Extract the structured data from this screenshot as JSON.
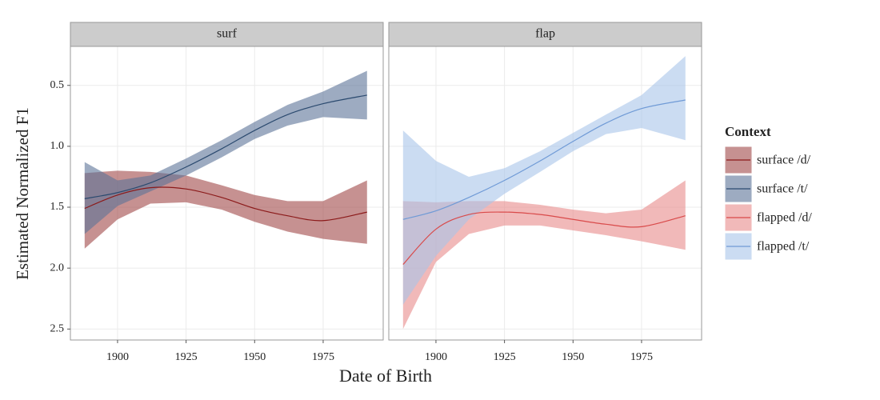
{
  "chart_data": {
    "type": "line",
    "xlabel": "Date of Birth",
    "ylabel": "Estimated Normalized F1",
    "legend_title": "Context",
    "legend_position": "right",
    "x": [
      1888,
      1900,
      1912,
      1925,
      1938,
      1950,
      1962,
      1975,
      1991
    ],
    "xlim": [
      1882.8,
      1996.9
    ],
    "xticks": [
      1900,
      1925,
      1950,
      1975
    ],
    "ylim": [
      0.18,
      2.59
    ],
    "yreverse": true,
    "yticks": [
      0.5,
      {
        "value": 1.0,
        "label": "1.0"
      },
      1.5,
      {
        "value": 2.0,
        "label": "2.0"
      },
      2.5
    ],
    "grid": true,
    "panels": [
      {
        "title": "surf",
        "series": [
          {
            "name": "surface /d/",
            "color": "#8b1a1a",
            "fill": "#a04848",
            "values": [
              1.51,
              1.4,
              1.34,
              1.35,
              1.42,
              1.51,
              1.57,
              1.61,
              1.54
            ],
            "lower": [
              1.22,
              1.2,
              1.21,
              1.24,
              1.32,
              1.4,
              1.45,
              1.45,
              1.28
            ],
            "upper": [
              1.84,
              1.6,
              1.47,
              1.46,
              1.52,
              1.62,
              1.7,
              1.76,
              1.8
            ]
          },
          {
            "name": "surface /t/",
            "color": "#2b4a6f",
            "fill": "#5b7398",
            "values": [
              1.43,
              1.38,
              1.3,
              1.17,
              1.02,
              0.87,
              0.74,
              0.65,
              0.58
            ],
            "lower": [
              1.13,
              1.28,
              1.24,
              1.1,
              0.95,
              0.8,
              0.66,
              0.55,
              0.38
            ],
            "upper": [
              1.72,
              1.49,
              1.37,
              1.24,
              1.09,
              0.94,
              0.83,
              0.76,
              0.78
            ]
          }
        ]
      },
      {
        "title": "flap",
        "series": [
          {
            "name": "flapped /d/",
            "color": "#d94a4a",
            "fill": "#e88a8a",
            "values": [
              1.97,
              1.68,
              1.56,
              1.54,
              1.56,
              1.6,
              1.64,
              1.66,
              1.57
            ],
            "lower": [
              1.45,
              1.46,
              1.45,
              1.45,
              1.48,
              1.52,
              1.55,
              1.52,
              1.28
            ],
            "upper": [
              2.5,
              1.95,
              1.72,
              1.65,
              1.65,
              1.69,
              1.73,
              1.78,
              1.85
            ]
          },
          {
            "name": "flapped /t/",
            "color": "#6f9ad6",
            "fill": "#a8c4ea",
            "values": [
              1.6,
              1.53,
              1.42,
              1.28,
              1.12,
              0.96,
              0.81,
              0.69,
              0.62
            ],
            "lower": [
              0.87,
              1.12,
              1.25,
              1.18,
              1.04,
              0.89,
              0.74,
              0.58,
              0.26
            ],
            "upper": [
              2.3,
              1.9,
              1.6,
              1.39,
              1.21,
              1.04,
              0.9,
              0.85,
              0.95
            ]
          }
        ]
      }
    ]
  }
}
